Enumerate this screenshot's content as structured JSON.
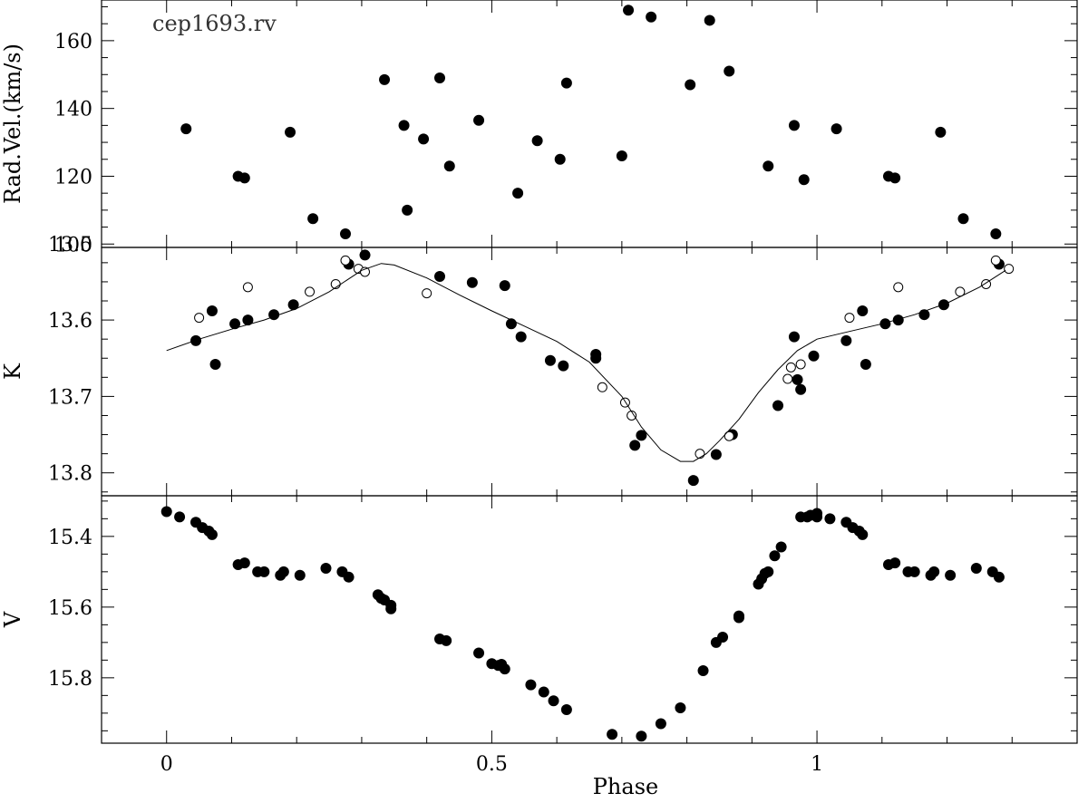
{
  "chart_data": [
    {
      "type": "scatter",
      "panel": "radial-velocity",
      "title": "cep1693.rv",
      "ylabel": "Rad.Vel.(km/s)",
      "xlim": [
        -0.1,
        1.4
      ],
      "ylim": [
        99,
        172
      ],
      "ytick_values": [
        100,
        120,
        140,
        160
      ],
      "ytick_labels": [
        "100",
        "120",
        "140",
        "160"
      ],
      "series": [
        {
          "marker": "filled-circle",
          "points": [
            [
              0.03,
              134
            ],
            [
              0.11,
              120
            ],
            [
              0.12,
              119.5
            ],
            [
              0.19,
              133
            ],
            [
              0.225,
              107.5
            ],
            [
              0.275,
              103
            ],
            [
              0.335,
              148.5
            ],
            [
              0.365,
              135
            ],
            [
              0.37,
              110
            ],
            [
              0.395,
              131
            ],
            [
              0.42,
              149
            ],
            [
              0.435,
              123
            ],
            [
              0.48,
              136.5
            ],
            [
              0.54,
              115
            ],
            [
              0.57,
              130.5
            ],
            [
              0.605,
              125
            ],
            [
              0.615,
              147.5
            ],
            [
              0.7,
              126
            ],
            [
              0.71,
              169
            ],
            [
              0.745,
              167
            ],
            [
              0.805,
              147
            ],
            [
              0.835,
              166
            ],
            [
              0.865,
              151
            ],
            [
              0.925,
              123
            ],
            [
              0.965,
              135
            ],
            [
              0.98,
              119
            ],
            [
              1.03,
              134
            ],
            [
              1.11,
              120
            ],
            [
              1.12,
              119.5
            ],
            [
              1.19,
              133
            ],
            [
              1.225,
              107.5
            ],
            [
              1.275,
              103
            ]
          ]
        }
      ]
    },
    {
      "type": "scatter",
      "panel": "k-band",
      "title": "",
      "ylabel": "K",
      "xlim": [
        -0.1,
        1.4
      ],
      "ylim": [
        13.83,
        13.505
      ],
      "ytick_values": [
        13.5,
        13.6,
        13.7,
        13.8
      ],
      "ytick_labels": [
        "13.5",
        "13.6",
        "13.7",
        "13.8"
      ],
      "series": [
        {
          "marker": "filled-circle",
          "points": [
            [
              0.045,
              13.627
            ],
            [
              0.07,
              13.588
            ],
            [
              0.075,
              13.658
            ],
            [
              0.105,
              13.605
            ],
            [
              0.125,
              13.6
            ],
            [
              0.165,
              13.593
            ],
            [
              0.195,
              13.58
            ],
            [
              0.28,
              13.527
            ],
            [
              0.305,
              13.515
            ],
            [
              0.42,
              13.543
            ],
            [
              0.47,
              13.551
            ],
            [
              0.52,
              13.555
            ],
            [
              0.53,
              13.605
            ],
            [
              0.545,
              13.622
            ],
            [
              0.59,
              13.653
            ],
            [
              0.61,
              13.66
            ],
            [
              0.66,
              13.645
            ],
            [
              0.66,
              13.65
            ],
            [
              0.72,
              13.764
            ],
            [
              0.73,
              13.751
            ],
            [
              0.81,
              13.81
            ],
            [
              0.845,
              13.776
            ],
            [
              0.87,
              13.75
            ],
            [
              0.94,
              13.712
            ],
            [
              0.965,
              13.622
            ],
            [
              0.97,
              13.678
            ],
            [
              0.975,
              13.691
            ],
            [
              0.995,
              13.647
            ],
            [
              1.045,
              13.627
            ],
            [
              1.07,
              13.588
            ],
            [
              1.075,
              13.658
            ],
            [
              1.105,
              13.605
            ],
            [
              1.125,
              13.6
            ],
            [
              1.165,
              13.593
            ],
            [
              1.195,
              13.58
            ],
            [
              1.28,
              13.527
            ]
          ]
        },
        {
          "marker": "open-circle",
          "points": [
            [
              0.05,
              13.597
            ],
            [
              0.125,
              13.557
            ],
            [
              0.22,
              13.563
            ],
            [
              0.26,
              13.553
            ],
            [
              0.275,
              13.522
            ],
            [
              0.295,
              13.533
            ],
            [
              0.305,
              13.537
            ],
            [
              0.4,
              13.565
            ],
            [
              0.67,
              13.688
            ],
            [
              0.705,
              13.708
            ],
            [
              0.715,
              13.725
            ],
            [
              0.82,
              13.775
            ],
            [
              0.865,
              13.752
            ],
            [
              0.955,
              13.677
            ],
            [
              0.96,
              13.662
            ],
            [
              0.975,
              13.658
            ],
            [
              1.05,
              13.597
            ],
            [
              1.125,
              13.557
            ],
            [
              1.22,
              13.563
            ],
            [
              1.26,
              13.553
            ],
            [
              1.275,
              13.522
            ],
            [
              1.295,
              13.533
            ]
          ]
        },
        {
          "marker": "line",
          "x": [
            0,
            0.05,
            0.1,
            0.15,
            0.2,
            0.25,
            0.3,
            0.33,
            0.35,
            0.4,
            0.45,
            0.5,
            0.55,
            0.6,
            0.65,
            0.7,
            0.73,
            0.76,
            0.79,
            0.81,
            0.83,
            0.85,
            0.88,
            0.91,
            0.94,
            0.97,
            1.0,
            1.05,
            1.1,
            1.15,
            1.2,
            1.25,
            1.29
          ],
          "y": [
            13.64,
            13.625,
            13.612,
            13.6,
            13.585,
            13.563,
            13.535,
            13.526,
            13.528,
            13.545,
            13.567,
            13.588,
            13.608,
            13.628,
            13.655,
            13.7,
            13.74,
            13.77,
            13.785,
            13.785,
            13.775,
            13.758,
            13.73,
            13.695,
            13.665,
            13.64,
            13.625,
            13.615,
            13.605,
            13.593,
            13.578,
            13.557,
            13.535
          ]
        }
      ]
    },
    {
      "type": "scatter",
      "panel": "v-band",
      "title": "",
      "xlabel": "Phase",
      "ylabel": "V",
      "xlim": [
        -0.1,
        1.4
      ],
      "ylim": [
        15.985,
        15.285
      ],
      "xtick_values": [
        0,
        0.5,
        1
      ],
      "xtick_labels": [
        "0",
        "0.5",
        "1"
      ],
      "ytick_values": [
        15.4,
        15.6,
        15.8
      ],
      "ytick_labels": [
        "15.4",
        "15.6",
        "15.8"
      ],
      "series": [
        {
          "marker": "filled-circle",
          "points": [
            [
              0.0,
              15.33
            ],
            [
              0.02,
              15.345
            ],
            [
              0.045,
              15.36
            ],
            [
              0.055,
              15.375
            ],
            [
              0.065,
              15.385
            ],
            [
              0.07,
              15.395
            ],
            [
              0.11,
              15.48
            ],
            [
              0.12,
              15.475
            ],
            [
              0.14,
              15.5
            ],
            [
              0.15,
              15.5
            ],
            [
              0.175,
              15.51
            ],
            [
              0.18,
              15.5
            ],
            [
              0.205,
              15.51
            ],
            [
              0.245,
              15.49
            ],
            [
              0.27,
              15.5
            ],
            [
              0.28,
              15.515
            ],
            [
              0.325,
              15.565
            ],
            [
              0.33,
              15.575
            ],
            [
              0.335,
              15.58
            ],
            [
              0.345,
              15.595
            ],
            [
              0.345,
              15.605
            ],
            [
              0.42,
              15.69
            ],
            [
              0.43,
              15.695
            ],
            [
              0.48,
              15.73
            ],
            [
              0.5,
              15.76
            ],
            [
              0.51,
              15.765
            ],
            [
              0.515,
              15.762
            ],
            [
              0.52,
              15.775
            ],
            [
              0.56,
              15.82
            ],
            [
              0.58,
              15.84
            ],
            [
              0.595,
              15.865
            ],
            [
              0.615,
              15.89
            ],
            [
              0.685,
              15.96
            ],
            [
              0.73,
              15.965
            ],
            [
              0.76,
              15.93
            ],
            [
              0.79,
              15.885
            ],
            [
              0.825,
              15.78
            ],
            [
              0.845,
              15.7
            ],
            [
              0.855,
              15.685
            ],
            [
              0.88,
              15.625
            ],
            [
              0.88,
              15.63
            ],
            [
              0.91,
              15.535
            ],
            [
              0.915,
              15.52
            ],
            [
              0.92,
              15.505
            ],
            [
              0.925,
              15.5
            ],
            [
              0.935,
              15.455
            ],
            [
              0.945,
              15.43
            ],
            [
              0.975,
              15.345
            ],
            [
              0.985,
              15.345
            ],
            [
              0.99,
              15.34
            ],
            [
              1.0,
              15.335
            ],
            [
              1.0,
              15.345
            ],
            [
              1.02,
              15.35
            ],
            [
              1.045,
              15.36
            ],
            [
              1.055,
              15.375
            ],
            [
              1.065,
              15.385
            ],
            [
              1.07,
              15.395
            ],
            [
              1.11,
              15.48
            ],
            [
              1.12,
              15.475
            ],
            [
              1.14,
              15.5
            ],
            [
              1.15,
              15.5
            ],
            [
              1.175,
              15.51
            ],
            [
              1.18,
              15.5
            ],
            [
              1.205,
              15.51
            ],
            [
              1.245,
              15.49
            ],
            [
              1.27,
              15.5
            ],
            [
              1.28,
              15.515
            ]
          ]
        }
      ]
    }
  ]
}
